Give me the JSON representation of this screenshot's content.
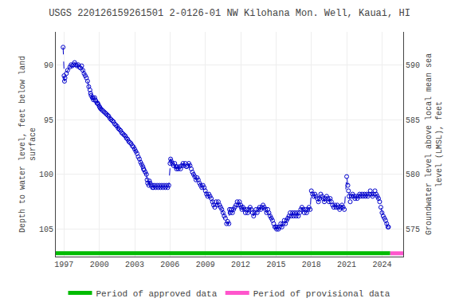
{
  "chart_data": {
    "type": "line",
    "title": "USGS 220126159261501 2-0126-01 NW Kilohana Mon. Well, Kauai, HI",
    "ylabel": "Depth to water level, feet below land\nsurface",
    "y2label": "Groundwater level above local mean sea\nlevel (LMSL), feet",
    "xlim": [
      1996.3,
      2025.8
    ],
    "xticks": [
      1997,
      2000,
      2003,
      2006,
      2009,
      2012,
      2015,
      2018,
      2021,
      2024
    ],
    "ylim": [
      107.5,
      87.0
    ],
    "yticks": [
      90,
      95,
      100,
      105
    ],
    "y2lim": [
      572.5,
      593.0
    ],
    "y2ticks": [
      575,
      580,
      585,
      590
    ],
    "grid": true,
    "legend": "lower center",
    "series": [
      {
        "color": "#0000cc",
        "marker": "open circle",
        "line_style": "dashed",
        "x": [
          1996.92,
          1997.0,
          1997.04,
          1997.08,
          1997.2,
          1997.3,
          1997.5,
          1997.6,
          1997.7,
          1997.8,
          1997.9,
          1998.0,
          1998.1,
          1998.2,
          1998.3,
          1998.4,
          1998.5,
          1998.6,
          1998.7,
          1998.8,
          1998.9,
          1999.0,
          1999.1,
          1999.2,
          1999.25,
          1999.3,
          1999.4,
          1999.45,
          1999.5,
          1999.6,
          1999.65,
          1999.7,
          1999.8,
          1999.85,
          1999.9,
          2000.0,
          2000.05,
          2000.1,
          2000.2,
          2000.3,
          2000.4,
          2000.5,
          2000.6,
          2000.7,
          2000.8,
          2000.9,
          2001.0,
          2001.1,
          2001.2,
          2001.3,
          2001.4,
          2001.5,
          2001.6,
          2001.7,
          2001.8,
          2001.9,
          2002.0,
          2002.1,
          2002.2,
          2002.3,
          2002.4,
          2002.5,
          2002.6,
          2002.7,
          2002.8,
          2002.9,
          2003.0,
          2003.1,
          2003.2,
          2003.3,
          2003.4,
          2003.5,
          2003.6,
          2003.7,
          2003.75,
          2003.8,
          2003.9,
          2004.0,
          2004.05,
          2004.1,
          2004.2,
          2004.25,
          2004.3,
          2004.4,
          2004.5,
          2004.55,
          2004.6,
          2004.7,
          2004.8,
          2004.9,
          2005.0,
          2005.1,
          2005.2,
          2005.3,
          2005.4,
          2005.5,
          2005.6,
          2005.7,
          2005.8,
          2005.9,
          2006.0,
          2006.05,
          2006.1,
          2006.2,
          2006.3,
          2006.4,
          2006.5,
          2006.55,
          2006.6,
          2006.7,
          2006.8,
          2006.9,
          2007.0,
          2007.1,
          2007.2,
          2007.3,
          2007.4,
          2007.5,
          2007.6,
          2007.7,
          2007.8,
          2007.9,
          2008.0,
          2008.1,
          2008.2,
          2008.3,
          2008.4,
          2008.5,
          2008.6,
          2008.7,
          2008.8,
          2008.9,
          2009.0,
          2009.1,
          2009.2,
          2009.3,
          2009.4,
          2009.5,
          2009.6,
          2009.7,
          2009.8,
          2009.9,
          2010.0,
          2010.1,
          2010.2,
          2010.3,
          2010.4,
          2010.5,
          2010.6,
          2010.7,
          2010.8,
          2010.9,
          2011.0,
          2011.05,
          2011.1,
          2011.2,
          2011.3,
          2011.4,
          2011.5,
          2011.6,
          2011.7,
          2011.8,
          2011.9,
          2012.0,
          2012.05,
          2012.1,
          2012.2,
          2012.3,
          2012.4,
          2012.5,
          2012.6,
          2012.7,
          2012.8,
          2012.9,
          2013.0,
          2013.1,
          2013.2,
          2013.3,
          2013.4,
          2013.5,
          2013.6,
          2013.7,
          2013.8,
          2013.9,
          2014.0,
          2014.1,
          2014.2,
          2014.3,
          2014.4,
          2014.5,
          2014.6,
          2014.7,
          2014.8,
          2014.9,
          2015.0,
          2015.05,
          2015.1,
          2015.2,
          2015.3,
          2015.4,
          2015.5,
          2015.6,
          2015.7,
          2015.8,
          2015.9,
          2016.0,
          2016.1,
          2016.2,
          2016.3,
          2016.4,
          2016.5,
          2016.6,
          2016.7,
          2016.8,
          2016.9,
          2017.0,
          2017.1,
          2017.2,
          2017.3,
          2017.4,
          2017.5,
          2017.6,
          2017.7,
          2017.8,
          2017.9,
          2018.0,
          2018.1,
          2018.2,
          2018.3,
          2018.4,
          2018.5,
          2018.6,
          2018.7,
          2018.8,
          2018.9,
          2019.0,
          2019.1,
          2019.2,
          2019.3,
          2019.4,
          2019.5,
          2019.6,
          2019.7,
          2019.8,
          2019.9,
          2020.0,
          2020.1,
          2020.2,
          2020.3,
          2020.4,
          2020.5,
          2020.6,
          2020.7,
          2020.8,
          2021.0,
          2021.1,
          2021.15,
          2021.2,
          2021.3,
          2021.4,
          2021.5,
          2021.6,
          2021.7,
          2021.8,
          2021.9,
          2022.0,
          2022.1,
          2022.2,
          2022.3,
          2022.4,
          2022.5,
          2022.6,
          2022.7,
          2022.8,
          2022.9,
          2023.0,
          2023.1,
          2023.2,
          2023.3,
          2023.4,
          2023.5,
          2023.6,
          2023.7,
          2023.8,
          2023.9,
          2024.0,
          2024.1,
          2024.2,
          2024.3,
          2024.4,
          2024.5,
          2024.55
        ],
        "values": [
          88.4,
          91.0,
          91.5,
          91.2,
          90.8,
          90.5,
          90.2,
          90.0,
          90.1,
          90.0,
          89.8,
          90.0,
          90.1,
          90.0,
          90.2,
          90.3,
          90.1,
          90.5,
          90.8,
          91.0,
          91.2,
          91.5,
          92.0,
          92.3,
          92.6,
          92.8,
          93.0,
          93.0,
          93.2,
          93.0,
          93.2,
          93.3,
          93.5,
          93.5,
          93.6,
          93.8,
          93.9,
          94.0,
          94.1,
          94.2,
          94.3,
          94.4,
          94.5,
          94.6,
          94.7,
          94.9,
          95.0,
          95.1,
          95.2,
          95.4,
          95.5,
          95.6,
          95.8,
          95.9,
          96.0,
          96.2,
          96.3,
          96.4,
          96.5,
          96.7,
          96.8,
          97.0,
          97.1,
          97.2,
          97.4,
          97.5,
          97.7,
          97.9,
          98.1,
          98.4,
          98.6,
          98.9,
          99.1,
          99.3,
          99.5,
          99.6,
          99.8,
          100.0,
          100.5,
          100.8,
          101.0,
          100.6,
          100.8,
          101.0,
          101.2,
          101.0,
          101.2,
          101.0,
          101.2,
          101.0,
          101.2,
          101.0,
          101.2,
          101.0,
          101.2,
          101.0,
          101.2,
          101.0,
          101.2,
          101.0,
          99.0,
          98.6,
          98.8,
          99.0,
          99.2,
          99.0,
          99.3,
          99.5,
          99.3,
          99.5,
          99.3,
          99.5,
          99.2,
          99.0,
          99.2,
          99.0,
          99.3,
          99.2,
          99.0,
          99.2,
          99.5,
          99.8,
          100.0,
          100.2,
          100.5,
          100.3,
          100.5,
          100.8,
          101.0,
          101.2,
          101.0,
          101.2,
          101.5,
          101.8,
          102.0,
          101.8,
          102.0,
          102.2,
          102.5,
          102.8,
          103.0,
          102.5,
          102.8,
          102.5,
          102.8,
          103.0,
          103.2,
          103.5,
          103.8,
          104.0,
          104.5,
          104.3,
          104.5,
          103.2,
          103.5,
          103.2,
          103.5,
          103.2,
          103.0,
          102.8,
          102.5,
          102.8,
          102.5,
          102.8,
          103.0,
          103.2,
          103.0,
          103.2,
          103.5,
          103.2,
          103.5,
          103.2,
          103.0,
          103.2,
          103.5,
          103.8,
          103.5,
          103.2,
          103.5,
          103.2,
          103.0,
          103.2,
          103.0,
          102.8,
          103.0,
          103.2,
          103.5,
          103.2,
          103.5,
          103.8,
          104.0,
          104.2,
          104.5,
          104.8,
          104.8,
          105.0,
          104.8,
          105.0,
          104.8,
          104.5,
          104.8,
          104.5,
          104.2,
          104.5,
          104.2,
          104.0,
          103.8,
          103.5,
          103.8,
          103.5,
          103.8,
          103.5,
          103.8,
          103.5,
          103.8,
          103.5,
          103.2,
          103.0,
          103.2,
          103.5,
          103.2,
          103.5,
          103.2,
          103.0,
          103.2,
          101.5,
          101.8,
          102.0,
          101.8,
          102.0,
          102.2,
          102.5,
          102.2,
          101.8,
          102.0,
          102.2,
          102.5,
          102.2,
          102.0,
          102.2,
          102.5,
          102.2,
          102.5,
          102.8,
          103.0,
          102.8,
          103.0,
          102.8,
          103.0,
          103.2,
          103.0,
          102.8,
          103.0,
          103.2,
          100.2,
          101.0,
          101.5,
          102.0,
          102.5,
          102.0,
          101.8,
          102.0,
          102.2,
          102.0,
          102.2,
          102.0,
          101.8,
          102.0,
          101.8,
          102.0,
          101.8,
          102.0,
          101.8,
          102.0,
          101.8,
          101.5,
          101.8,
          102.0,
          101.8,
          101.5,
          101.8,
          102.0,
          102.2,
          102.5,
          103.0,
          103.5,
          103.8,
          104.0,
          104.2,
          104.5,
          104.8,
          104.8
        ]
      },
      {
        "name": "Period of approved data",
        "color": "#00bb00",
        "line_style": "solid",
        "x": [
          1996.3,
          2024.7
        ],
        "values": [
          107.2,
          107.2
        ]
      },
      {
        "name": "Period of provisional data",
        "color": "#ff55cc",
        "line_style": "solid",
        "x": [
          2024.7,
          2025.8
        ],
        "values": [
          107.2,
          107.2
        ]
      }
    ]
  }
}
